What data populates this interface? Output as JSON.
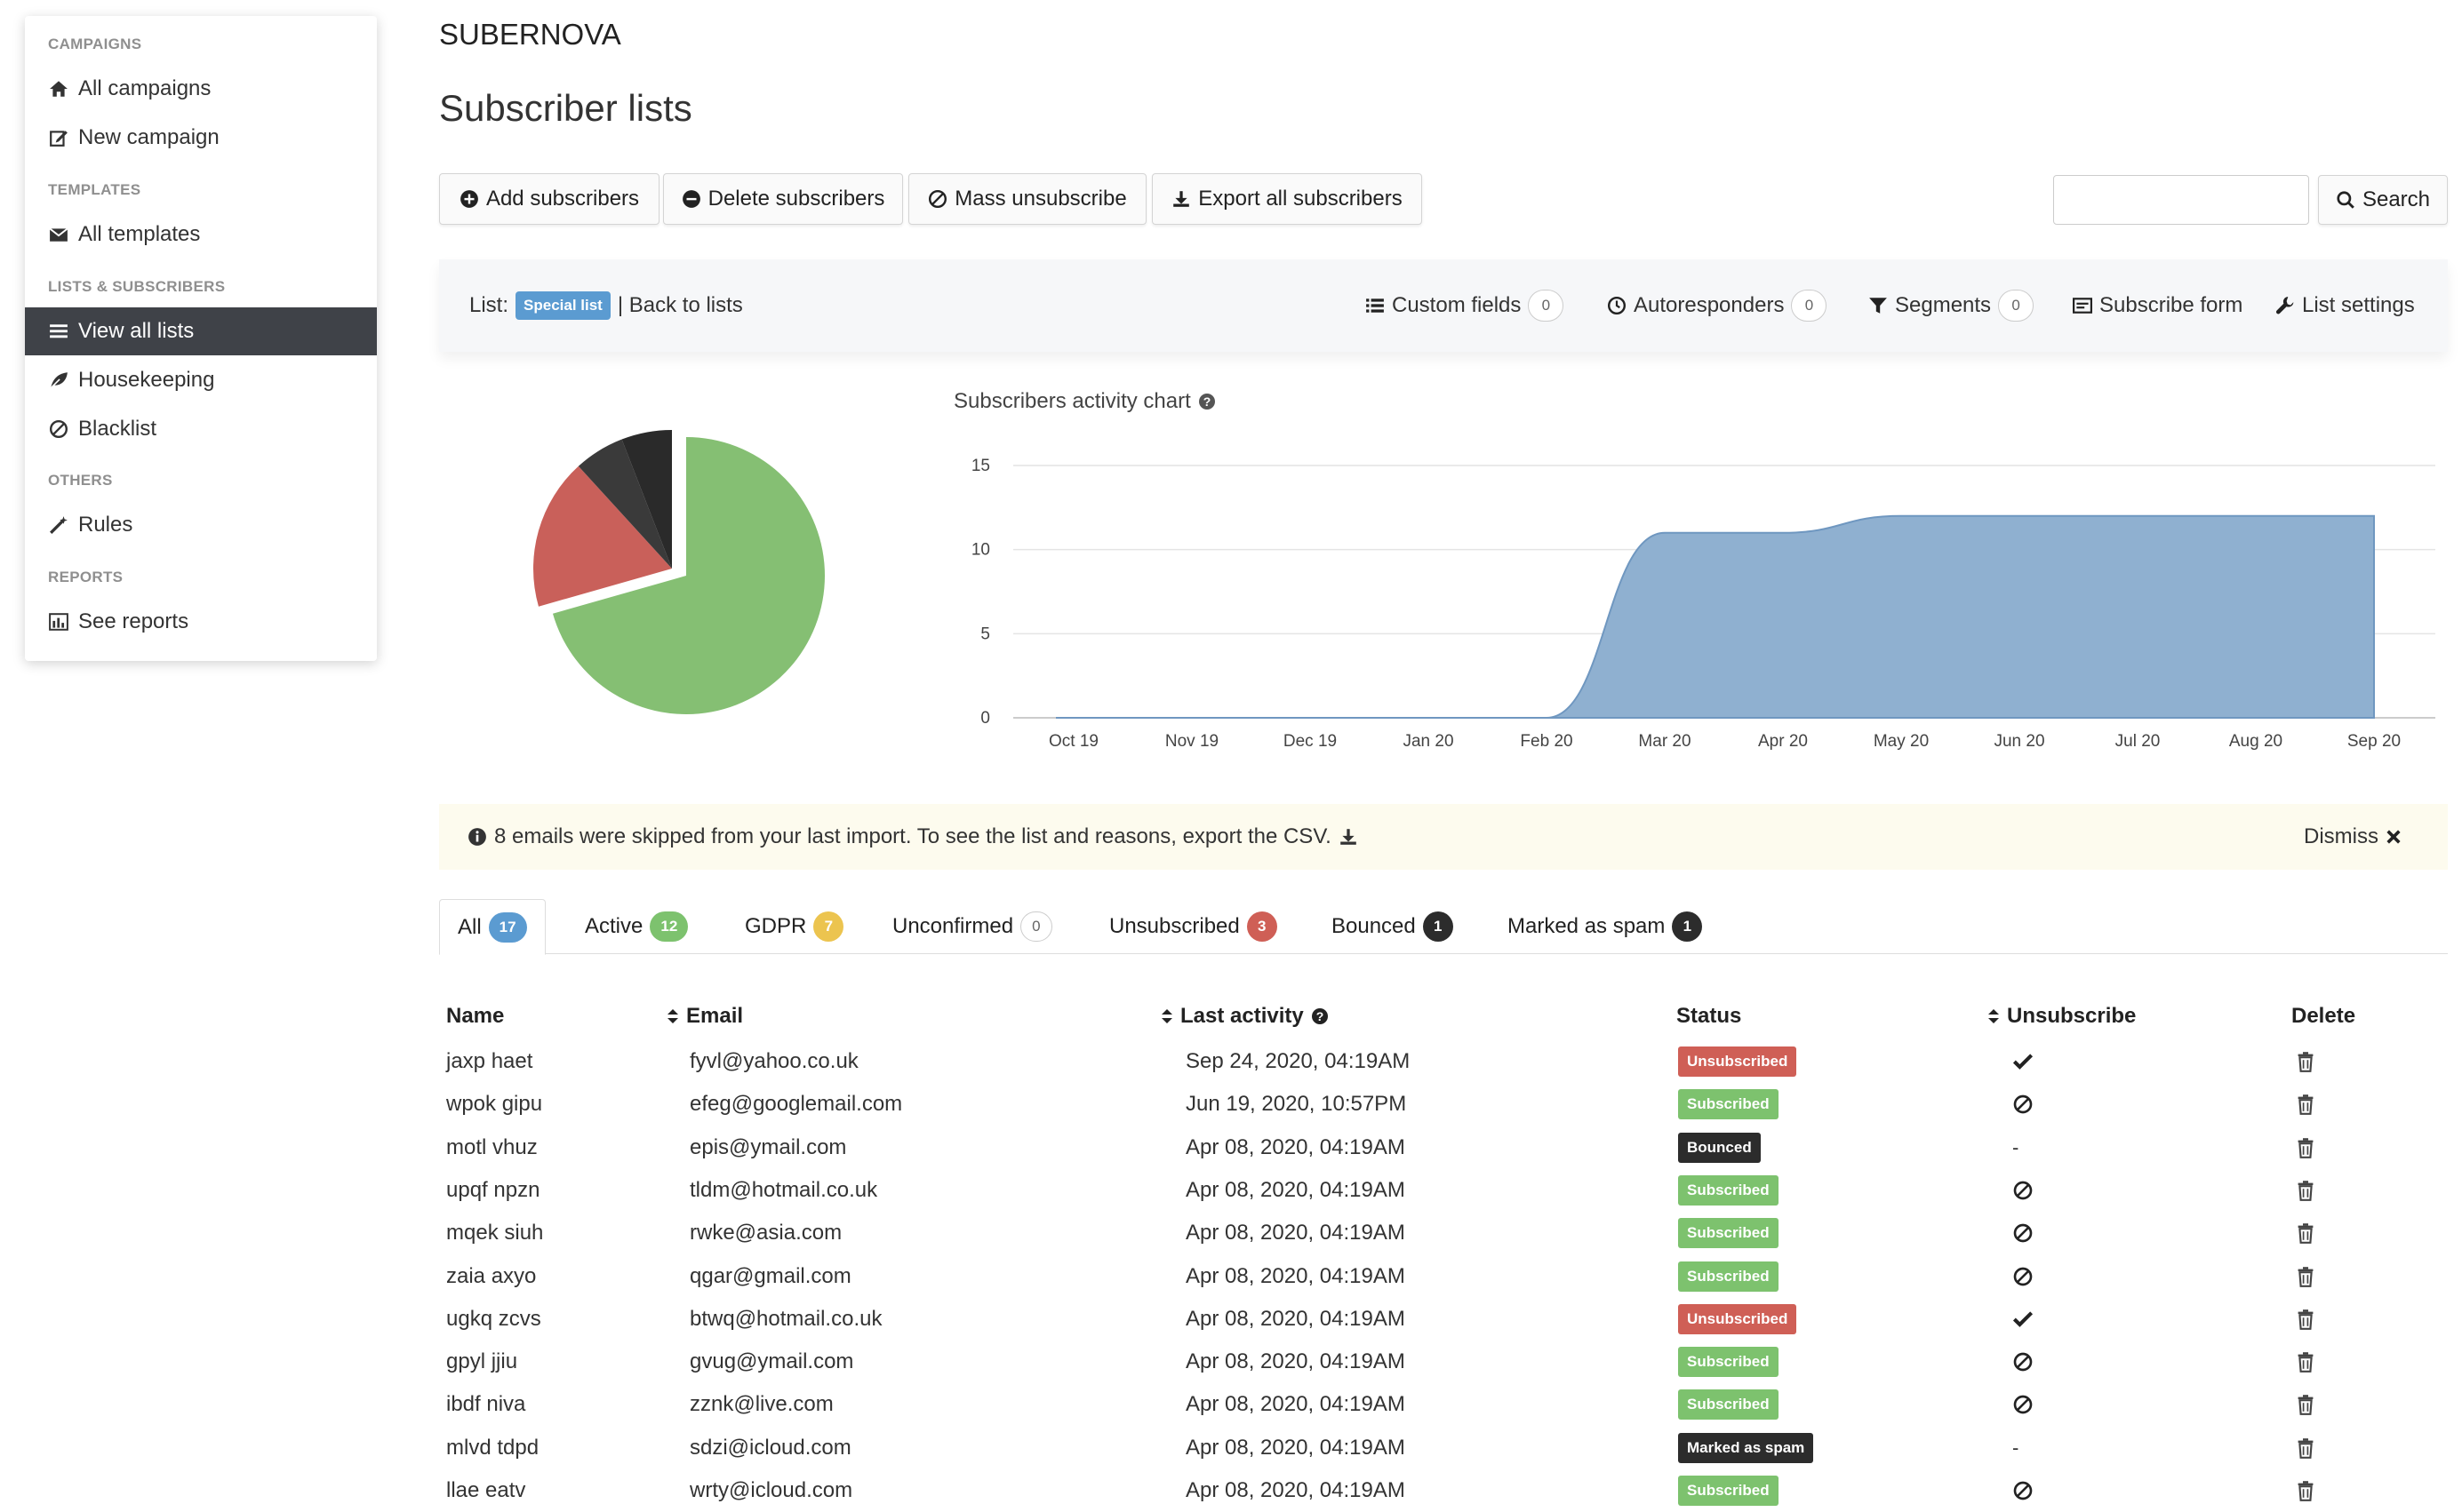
{
  "sidebar": {
    "sections": [
      {
        "heading": "CAMPAIGNS",
        "items": [
          {
            "label": "All campaigns",
            "icon": "home-icon"
          },
          {
            "label": "New campaign",
            "icon": "edit-icon"
          }
        ]
      },
      {
        "heading": "TEMPLATES",
        "items": [
          {
            "label": "All templates",
            "icon": "envelope-icon"
          }
        ]
      },
      {
        "heading": "LISTS & SUBSCRIBERS",
        "items": [
          {
            "label": "View all lists",
            "icon": "list-icon",
            "active": true
          },
          {
            "label": "Housekeeping",
            "icon": "leaf-icon"
          },
          {
            "label": "Blacklist",
            "icon": "ban-icon"
          }
        ]
      },
      {
        "heading": "OTHERS",
        "items": [
          {
            "label": "Rules",
            "icon": "magic-wand-icon"
          }
        ]
      },
      {
        "heading": "REPORTS",
        "items": [
          {
            "label": "See reports",
            "icon": "bar-chart-icon"
          }
        ]
      }
    ]
  },
  "header": {
    "brand": "SUBERNOVA",
    "title": "Subscriber lists"
  },
  "toolbar": {
    "add": "Add subscribers",
    "delete": "Delete subscribers",
    "mass_unsub": "Mass unsubscribe",
    "export": "Export all subscribers",
    "search_placeholder": "",
    "search": "Search"
  },
  "listbar": {
    "list_label": "List:",
    "list_name": "Special list",
    "back": "| Back to lists",
    "custom_fields": "Custom fields",
    "custom_fields_count": "0",
    "autoresponders": "Autoresponders",
    "autoresponders_count": "0",
    "segments": "Segments",
    "segments_count": "0",
    "subscribe_form": "Subscribe form",
    "list_settings": "List settings"
  },
  "pie": {
    "colors": {
      "active": "#85bf73",
      "unsubscribed": "#c9605a",
      "bounced": "#3a3a3a",
      "spam": "#2a2a2a"
    }
  },
  "chart_data": {
    "type": "area",
    "title": "Subscribers activity chart",
    "x": [
      "Oct 19",
      "Nov 19",
      "Dec 19",
      "Jan 20",
      "Feb 20",
      "Mar 20",
      "Apr 20",
      "May 20",
      "Jun 20",
      "Jul 20",
      "Aug 20",
      "Sep 20"
    ],
    "values": [
      0,
      0,
      0,
      0,
      0,
      11,
      11,
      12,
      12,
      12,
      12,
      12
    ],
    "ylim": [
      0,
      15
    ],
    "yticks": [
      0,
      5,
      10,
      15
    ],
    "color": "#8fb0d0",
    "grid": true
  },
  "alert": {
    "message": "8 emails were skipped from your last import. To see the list and reasons, export the CSV.",
    "dismiss": "Dismiss"
  },
  "tabs": [
    {
      "label": "All",
      "count": "17",
      "style": "blue",
      "active": true
    },
    {
      "label": "Active",
      "count": "12",
      "style": "green"
    },
    {
      "label": "GDPR",
      "count": "7",
      "style": "yellow"
    },
    {
      "label": "Unconfirmed",
      "count": "0",
      "style": "outline"
    },
    {
      "label": "Unsubscribed",
      "count": "3",
      "style": "red"
    },
    {
      "label": "Bounced",
      "count": "1",
      "style": "dark"
    },
    {
      "label": "Marked as spam",
      "count": "1",
      "style": "dark"
    }
  ],
  "table": {
    "headers": {
      "name": "Name",
      "email": "Email",
      "last_activity": "Last activity",
      "status": "Status",
      "unsubscribe": "Unsubscribe",
      "delete": "Delete"
    },
    "rows": [
      {
        "name": "jaxp haet",
        "email": "fyvl@yahoo.co.uk",
        "last": "Sep 24, 2020, 04:19AM",
        "status": "Unsubscribed",
        "kind": "unsub",
        "action": "check"
      },
      {
        "name": "wpok gipu",
        "email": "efeg@googlemail.com",
        "last": "Jun 19, 2020, 10:57PM",
        "status": "Subscribed",
        "kind": "sub",
        "action": "ban"
      },
      {
        "name": "motl vhuz",
        "email": "epis@ymail.com",
        "last": "Apr 08, 2020, 04:19AM",
        "status": "Bounced",
        "kind": "dark",
        "action": "dash"
      },
      {
        "name": "upqf npzn",
        "email": "tldm@hotmail.co.uk",
        "last": "Apr 08, 2020, 04:19AM",
        "status": "Subscribed",
        "kind": "sub",
        "action": "ban"
      },
      {
        "name": "mqek siuh",
        "email": "rwke@asia.com",
        "last": "Apr 08, 2020, 04:19AM",
        "status": "Subscribed",
        "kind": "sub",
        "action": "ban"
      },
      {
        "name": "zaia axyo",
        "email": "qgar@gmail.com",
        "last": "Apr 08, 2020, 04:19AM",
        "status": "Subscribed",
        "kind": "sub",
        "action": "ban"
      },
      {
        "name": "ugkq zcvs",
        "email": "btwq@hotmail.co.uk",
        "last": "Apr 08, 2020, 04:19AM",
        "status": "Unsubscribed",
        "kind": "unsub",
        "action": "check"
      },
      {
        "name": "gpyl jjiu",
        "email": "gvug@ymail.com",
        "last": "Apr 08, 2020, 04:19AM",
        "status": "Subscribed",
        "kind": "sub",
        "action": "ban"
      },
      {
        "name": "ibdf niva",
        "email": "zznk@live.com",
        "last": "Apr 08, 2020, 04:19AM",
        "status": "Subscribed",
        "kind": "sub",
        "action": "ban"
      },
      {
        "name": "mlvd tdpd",
        "email": "sdzi@icloud.com",
        "last": "Apr 08, 2020, 04:19AM",
        "status": "Marked as spam",
        "kind": "dark",
        "action": "dash"
      },
      {
        "name": "llae eatv",
        "email": "wrty@icloud.com",
        "last": "Apr 08, 2020, 04:19AM",
        "status": "Subscribed",
        "kind": "sub",
        "action": "ban"
      }
    ]
  }
}
